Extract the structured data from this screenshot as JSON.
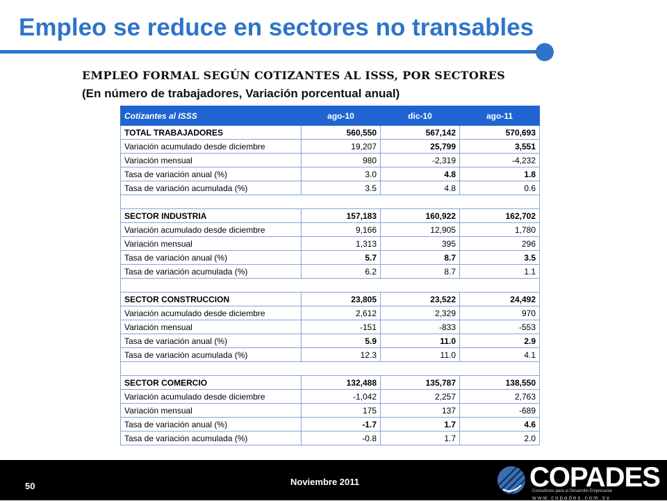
{
  "slide": {
    "title": "Empleo se reduce en sectores no transables",
    "subtitle": "EMPLEO FORMAL SEGÚN COTIZANTES AL ISSS, POR SECTORES",
    "subtitle_units": "(En número de trabajadores, Variación porcentual anual)"
  },
  "table": {
    "headers": [
      "Cotizantes al ISSS",
      "ago-10",
      "dic-10",
      "ago-11"
    ],
    "rows": [
      {
        "label": "TOTAL TRABAJADORES",
        "values": [
          "560,550",
          "567,142",
          "570,693"
        ]
      },
      {
        "label": "Variación acumulado desde diciembre",
        "values": [
          "19,207",
          "25,799",
          "3,551"
        ]
      },
      {
        "label": "Variación mensual",
        "values": [
          "980",
          "-2,319",
          "-4,232"
        ]
      },
      {
        "label": "Tasa de variación anual (%)",
        "values": [
          "3.0",
          "4.8",
          "1.8"
        ]
      },
      {
        "label": "Tasa de variación acumulada (%)",
        "values": [
          "3.5",
          "4.8",
          "0.6"
        ]
      },
      {
        "label": "SECTOR INDUSTRIA",
        "values": [
          "157,183",
          "160,922",
          "162,702"
        ]
      },
      {
        "label": "Variación acumulado desde diciembre",
        "values": [
          "9,166",
          "12,905",
          "1,780"
        ]
      },
      {
        "label": "Variación mensual",
        "values": [
          "1,313",
          "395",
          "296"
        ]
      },
      {
        "label": "Tasa de variación anual (%)",
        "values": [
          "5.7",
          "8.7",
          "3.5"
        ]
      },
      {
        "label": "Tasa de variación acumulada (%)",
        "values": [
          "6.2",
          "8.7",
          "1.1"
        ]
      },
      {
        "label": "SECTOR CONSTRUCCION",
        "values": [
          "23,805",
          "23,522",
          "24,492"
        ]
      },
      {
        "label": "Variación acumulado desde diciembre",
        "values": [
          "2,612",
          "2,329",
          "970"
        ]
      },
      {
        "label": "Variación mensual",
        "values": [
          "-151",
          "-833",
          "-553"
        ]
      },
      {
        "label": "Tasa de variación anual (%)",
        "values": [
          "5.9",
          "11.0",
          "2.9"
        ]
      },
      {
        "label": "Tasa de variación acumulada (%)",
        "values": [
          "12.3",
          "11.0",
          "4.1"
        ]
      },
      {
        "label": "SECTOR COMERCIO",
        "values": [
          "132,488",
          "135,787",
          "138,550"
        ]
      },
      {
        "label": "Variación acumulado desde diciembre",
        "values": [
          "-1,042",
          "2,257",
          "2,763"
        ]
      },
      {
        "label": "Variación mensual",
        "values": [
          "175",
          "137",
          "-689"
        ]
      },
      {
        "label": "Tasa de variación anual (%)",
        "values": [
          "-1.7",
          "1.7",
          "4.6"
        ]
      },
      {
        "label": "Tasa de variación acumulada (%)",
        "values": [
          "-0.8",
          "1.7",
          "2.0"
        ]
      }
    ]
  },
  "footer": {
    "page_number": "50",
    "date": "Noviembre 2011",
    "logo_text": "COPADES",
    "logo_tagline": "Consultores para el Desarrollo Empresarial",
    "logo_url": "www.copades.com.sv"
  },
  "colors": {
    "accent": "#2e74c8",
    "table_header": "#1f64d1",
    "footer": "#000000"
  }
}
